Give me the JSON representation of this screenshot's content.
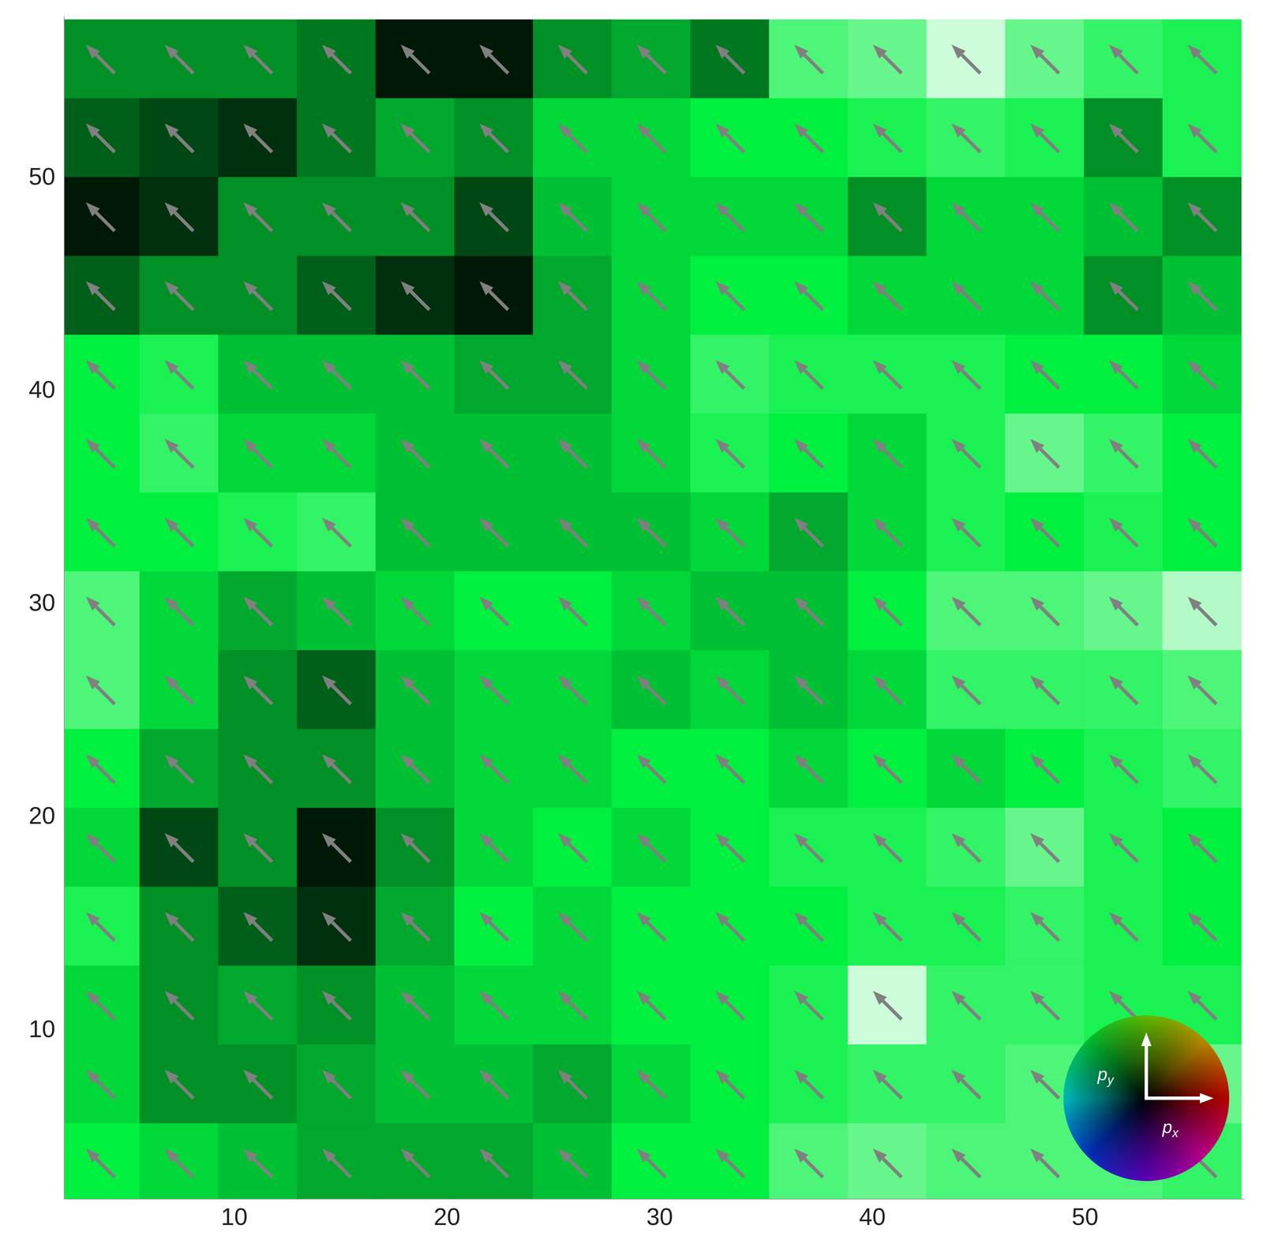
{
  "chart_data": {
    "type": "vector_field",
    "xlim": [
      2,
      57.5
    ],
    "ylim": [
      2,
      57.5
    ],
    "xticks": [
      10,
      20,
      30,
      40,
      50
    ],
    "yticks": [
      10,
      20,
      30,
      40,
      50
    ],
    "grid": false,
    "color": "#808080",
    "x": [
      3.7,
      7.4,
      11.1,
      14.8,
      18.5,
      22.2,
      25.9,
      29.6,
      33.3,
      37.0,
      40.7,
      44.4,
      48.1,
      51.8,
      55.5
    ],
    "y": [
      55.5,
      51.8,
      48.1,
      44.4,
      40.7,
      37.0,
      33.3,
      29.6,
      25.9,
      22.2,
      18.5,
      14.8,
      11.1,
      7.4,
      3.7
    ],
    "magnitude": [
      [
        0.3,
        0.3,
        0.3,
        0.25,
        0.05,
        0.05,
        0.3,
        0.35,
        0.25,
        0.65,
        0.7,
        0.9,
        0.7,
        0.6,
        0.55
      ],
      [
        0.2,
        0.15,
        0.1,
        0.25,
        0.35,
        0.3,
        0.45,
        0.45,
        0.5,
        0.5,
        0.55,
        0.6,
        0.55,
        0.3,
        0.55
      ],
      [
        0.05,
        0.1,
        0.3,
        0.3,
        0.3,
        0.15,
        0.4,
        0.45,
        0.45,
        0.45,
        0.3,
        0.45,
        0.45,
        0.4,
        0.3
      ],
      [
        0.2,
        0.3,
        0.3,
        0.2,
        0.1,
        0.05,
        0.35,
        0.45,
        0.5,
        0.5,
        0.45,
        0.45,
        0.45,
        0.3,
        0.4
      ],
      [
        0.5,
        0.55,
        0.4,
        0.4,
        0.4,
        0.35,
        0.35,
        0.45,
        0.6,
        0.55,
        0.55,
        0.55,
        0.5,
        0.5,
        0.45
      ],
      [
        0.5,
        0.6,
        0.45,
        0.45,
        0.4,
        0.4,
        0.4,
        0.45,
        0.55,
        0.5,
        0.45,
        0.55,
        0.7,
        0.6,
        0.5
      ],
      [
        0.5,
        0.5,
        0.55,
        0.6,
        0.4,
        0.4,
        0.4,
        0.4,
        0.45,
        0.35,
        0.45,
        0.55,
        0.5,
        0.55,
        0.5
      ],
      [
        0.65,
        0.45,
        0.35,
        0.4,
        0.45,
        0.5,
        0.5,
        0.45,
        0.4,
        0.4,
        0.5,
        0.65,
        0.65,
        0.7,
        0.85
      ],
      [
        0.65,
        0.45,
        0.3,
        0.2,
        0.4,
        0.45,
        0.45,
        0.4,
        0.45,
        0.4,
        0.45,
        0.6,
        0.6,
        0.6,
        0.65
      ],
      [
        0.5,
        0.35,
        0.3,
        0.3,
        0.4,
        0.45,
        0.45,
        0.5,
        0.5,
        0.45,
        0.5,
        0.45,
        0.5,
        0.55,
        0.6
      ],
      [
        0.45,
        0.15,
        0.3,
        0.05,
        0.3,
        0.45,
        0.5,
        0.45,
        0.5,
        0.55,
        0.55,
        0.6,
        0.7,
        0.55,
        0.5
      ],
      [
        0.55,
        0.3,
        0.2,
        0.1,
        0.35,
        0.5,
        0.45,
        0.5,
        0.5,
        0.5,
        0.55,
        0.55,
        0.6,
        0.55,
        0.5
      ],
      [
        0.45,
        0.3,
        0.35,
        0.3,
        0.4,
        0.45,
        0.45,
        0.5,
        0.5,
        0.55,
        0.9,
        0.6,
        0.6,
        0.55,
        0.55
      ],
      [
        0.45,
        0.3,
        0.3,
        0.35,
        0.4,
        0.4,
        0.35,
        0.45,
        0.5,
        0.55,
        0.6,
        0.6,
        0.65,
        0.7,
        0.7
      ],
      [
        0.5,
        0.45,
        0.4,
        0.35,
        0.35,
        0.35,
        0.4,
        0.5,
        0.5,
        0.65,
        0.7,
        0.65,
        0.65,
        0.65,
        0.6
      ]
    ],
    "px": [
      [
        -0.7,
        -0.7,
        -0.7,
        -0.7,
        -0.7,
        -0.7,
        -0.7,
        -0.7,
        -0.7,
        -0.7,
        -0.7,
        -0.7,
        -0.7,
        -0.7,
        -0.7
      ],
      [
        -0.7,
        -0.7,
        -0.7,
        -0.7,
        -0.7,
        -0.7,
        -0.7,
        -0.7,
        -0.7,
        -0.7,
        -0.7,
        -0.7,
        -0.7,
        -0.7,
        -0.7
      ],
      [
        -0.7,
        -0.7,
        -0.7,
        -0.7,
        -0.7,
        -0.7,
        -0.7,
        -0.7,
        -0.7,
        -0.7,
        -0.7,
        -0.7,
        -0.7,
        -0.7,
        -0.7
      ],
      [
        -0.7,
        -0.7,
        -0.7,
        -0.7,
        -0.7,
        -0.7,
        -0.7,
        -0.7,
        -0.7,
        -0.7,
        -0.7,
        -0.7,
        -0.7,
        -0.7,
        -0.7
      ],
      [
        -0.7,
        -0.7,
        -0.7,
        -0.7,
        -0.7,
        -0.7,
        -0.7,
        -0.7,
        -0.7,
        -0.7,
        -0.7,
        -0.7,
        -0.7,
        -0.7,
        -0.7
      ],
      [
        -0.7,
        -0.7,
        -0.7,
        -0.7,
        -0.7,
        -0.7,
        -0.7,
        -0.7,
        -0.7,
        -0.7,
        -0.7,
        -0.7,
        -0.7,
        -0.7,
        -0.7
      ],
      [
        -0.7,
        -0.7,
        -0.7,
        -0.7,
        -0.7,
        -0.7,
        -0.7,
        -0.7,
        -0.7,
        -0.7,
        -0.7,
        -0.7,
        -0.7,
        -0.7,
        -0.7
      ],
      [
        -0.7,
        -0.7,
        -0.7,
        -0.7,
        -0.7,
        -0.7,
        -0.7,
        -0.7,
        -0.7,
        -0.7,
        -0.7,
        -0.7,
        -0.7,
        -0.7,
        -0.7
      ],
      [
        -0.7,
        -0.7,
        -0.7,
        -0.7,
        -0.7,
        -0.7,
        -0.7,
        -0.7,
        -0.7,
        -0.7,
        -0.7,
        -0.7,
        -0.7,
        -0.7,
        -0.7
      ],
      [
        -0.7,
        -0.7,
        -0.7,
        -0.7,
        -0.7,
        -0.7,
        -0.7,
        -0.7,
        -0.7,
        -0.7,
        -0.7,
        -0.7,
        -0.7,
        -0.7,
        -0.7
      ],
      [
        -0.7,
        -0.7,
        -0.7,
        -0.7,
        -0.7,
        -0.7,
        -0.7,
        -0.7,
        -0.7,
        -0.7,
        -0.7,
        -0.7,
        -0.7,
        -0.7,
        -0.7
      ],
      [
        -0.7,
        -0.7,
        -0.7,
        -0.7,
        -0.7,
        -0.7,
        -0.7,
        -0.7,
        -0.7,
        -0.7,
        -0.7,
        -0.7,
        -0.7,
        -0.7,
        -0.7
      ],
      [
        -0.7,
        -0.7,
        -0.7,
        -0.7,
        -0.7,
        -0.7,
        -0.7,
        -0.7,
        -0.7,
        -0.7,
        -0.7,
        -0.7,
        -0.7,
        -0.7,
        -0.7
      ],
      [
        -0.7,
        -0.7,
        -0.7,
        -0.7,
        -0.7,
        -0.7,
        -0.7,
        -0.7,
        -0.7,
        -0.7,
        -0.7,
        -0.7,
        -0.7,
        -0.7,
        -0.7
      ],
      [
        -0.7,
        -0.7,
        -0.7,
        -0.7,
        -0.7,
        -0.7,
        -0.7,
        -0.7,
        -0.7,
        -0.7,
        -0.7,
        -0.7,
        -0.7,
        -0.7,
        -0.7
      ]
    ],
    "py": [
      [
        0.7,
        0.7,
        0.7,
        0.7,
        0.7,
        0.7,
        0.7,
        0.7,
        0.7,
        0.7,
        0.7,
        0.7,
        0.7,
        0.7,
        0.7
      ],
      [
        0.7,
        0.7,
        0.7,
        0.7,
        0.7,
        0.7,
        0.7,
        0.7,
        0.7,
        0.7,
        0.7,
        0.7,
        0.7,
        0.7,
        0.7
      ],
      [
        0.7,
        0.7,
        0.7,
        0.7,
        0.7,
        0.7,
        0.7,
        0.7,
        0.7,
        0.7,
        0.7,
        0.7,
        0.7,
        0.7,
        0.7
      ],
      [
        0.7,
        0.7,
        0.7,
        0.7,
        0.7,
        0.7,
        0.7,
        0.7,
        0.7,
        0.7,
        0.7,
        0.7,
        0.7,
        0.7,
        0.7
      ],
      [
        0.7,
        0.7,
        0.7,
        0.7,
        0.7,
        0.7,
        0.7,
        0.7,
        0.7,
        0.7,
        0.7,
        0.7,
        0.7,
        0.7,
        0.7
      ],
      [
        0.7,
        0.7,
        0.7,
        0.7,
        0.7,
        0.7,
        0.7,
        0.7,
        0.7,
        0.7,
        0.7,
        0.7,
        0.7,
        0.7,
        0.7
      ],
      [
        0.7,
        0.7,
        0.7,
        0.7,
        0.7,
        0.7,
        0.7,
        0.7,
        0.7,
        0.7,
        0.7,
        0.7,
        0.7,
        0.7,
        0.7
      ],
      [
        0.7,
        0.7,
        0.7,
        0.7,
        0.7,
        0.7,
        0.7,
        0.7,
        0.7,
        0.7,
        0.7,
        0.7,
        0.7,
        0.7,
        0.7
      ],
      [
        0.7,
        0.7,
        0.7,
        0.7,
        0.7,
        0.7,
        0.7,
        0.7,
        0.7,
        0.7,
        0.7,
        0.7,
        0.7,
        0.7,
        0.7
      ],
      [
        0.7,
        0.7,
        0.7,
        0.7,
        0.7,
        0.7,
        0.7,
        0.7,
        0.7,
        0.7,
        0.7,
        0.7,
        0.7,
        0.7,
        0.7
      ],
      [
        0.7,
        0.7,
        0.7,
        0.7,
        0.7,
        0.7,
        0.7,
        0.7,
        0.7,
        0.7,
        0.7,
        0.7,
        0.7,
        0.7,
        0.7
      ],
      [
        0.7,
        0.7,
        0.7,
        0.7,
        0.7,
        0.7,
        0.7,
        0.7,
        0.7,
        0.7,
        0.7,
        0.7,
        0.7,
        0.7,
        0.7
      ],
      [
        0.7,
        0.7,
        0.7,
        0.7,
        0.7,
        0.7,
        0.7,
        0.7,
        0.7,
        0.7,
        0.7,
        0.7,
        0.7,
        0.7,
        0.7
      ],
      [
        0.7,
        0.7,
        0.7,
        0.7,
        0.7,
        0.7,
        0.7,
        0.7,
        0.7,
        0.7,
        0.7,
        0.7,
        0.7,
        0.7,
        0.7
      ],
      [
        0.7,
        0.7,
        0.7,
        0.7,
        0.7,
        0.7,
        0.7,
        0.7,
        0.7,
        0.7,
        0.7,
        0.7,
        0.7,
        0.7,
        0.7
      ]
    ],
    "color_wheel": {
      "y_label": {
        "label": "p",
        "subscript": "y"
      },
      "x_label": {
        "label": "p",
        "subscript": "x"
      }
    }
  }
}
